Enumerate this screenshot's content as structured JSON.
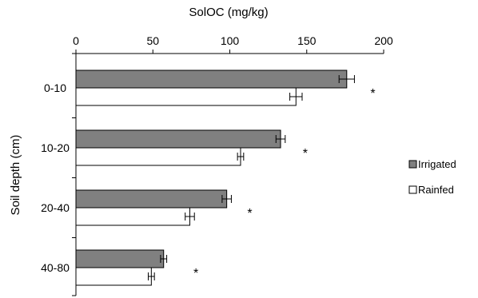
{
  "chart_data": {
    "type": "bar",
    "orientation": "horizontal",
    "title": "",
    "xlabel": "SolOC (mg/kg)",
    "ylabel": "Soil depth (cm)",
    "xlim": [
      0,
      200
    ],
    "xticks": [
      0,
      50,
      100,
      150,
      200
    ],
    "x_axis_position": "top",
    "grid": false,
    "legend_position": "right",
    "categories": [
      "0-10",
      "10-20",
      "20-40",
      "40-80"
    ],
    "series": [
      {
        "name": "Irrigated",
        "color": "#808080",
        "values": [
          176,
          133,
          98,
          57
        ],
        "errors": [
          5,
          3,
          3,
          2
        ]
      },
      {
        "name": "Rainfed",
        "color": "#ffffff",
        "values": [
          143,
          107,
          74,
          49
        ],
        "errors": [
          4,
          2,
          3,
          2
        ]
      }
    ],
    "annotations": [
      {
        "category": "0-10",
        "text": "*",
        "x": 193
      },
      {
        "category": "10-20",
        "text": "*",
        "x": 149
      },
      {
        "category": "20-40",
        "text": "*",
        "x": 113
      },
      {
        "category": "40-80",
        "text": "*",
        "x": 78
      }
    ]
  }
}
